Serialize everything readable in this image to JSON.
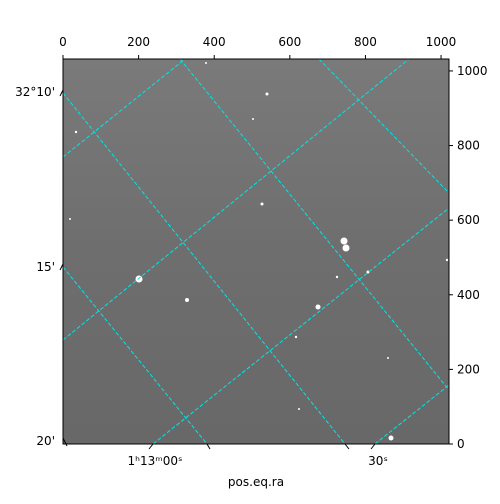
{
  "chart_data": {
    "type": "image",
    "xlabel": "pos.eq.ra",
    "xlim": [
      0,
      1021
    ],
    "xticks": [
      0,
      200,
      400,
      600,
      800,
      1000
    ],
    "ylim": [
      0,
      1032
    ],
    "yticks": [
      0,
      200,
      400,
      600,
      800,
      1000
    ],
    "world_y_labels": [
      "32°10'",
      "15'",
      "20'"
    ],
    "world_x_labels": [
      "1ʰ13ᵐ00ˢ",
      "30ˢ"
    ]
  }
}
